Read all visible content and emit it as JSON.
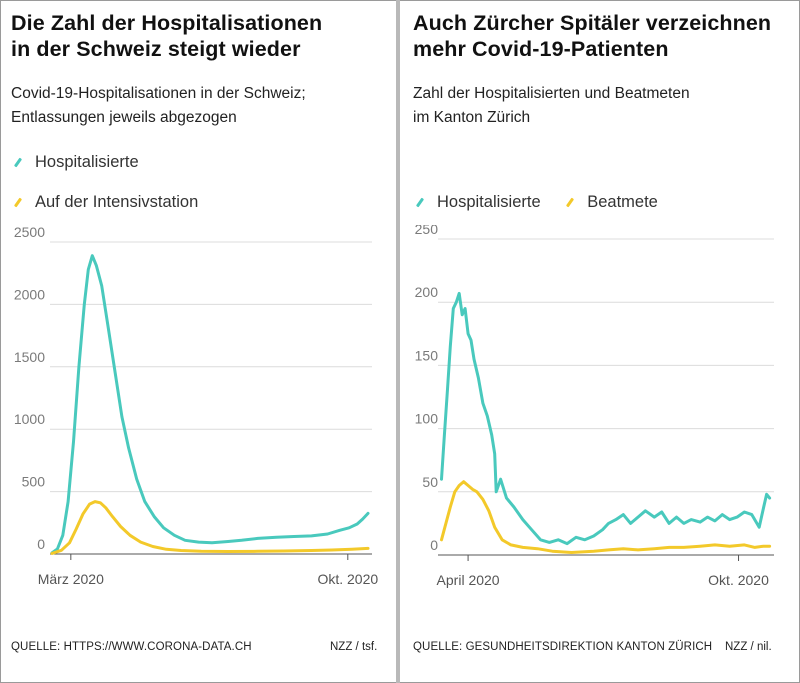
{
  "colors": {
    "teal": "#49c9bd",
    "yellow": "#f3c92a",
    "grid": "#dcdcdc",
    "axis": "#555555",
    "tick_text": "#7a7a7a"
  },
  "left": {
    "title_line1": "Die Zahl der Hospitalisationen",
    "title_line2": "in der Schweiz steigt wieder",
    "subtitle_line1": "Covid-19-Hospitalisationen in der Schweiz;",
    "subtitle_line2": "Entlassungen jeweils abgezogen",
    "legend": [
      "Hospitalisierte",
      "Auf der Intensivstation"
    ],
    "source": "QUELLE: HTTPS://WWW.CORONA-DATA.CH",
    "credit": "NZZ / tsf."
  },
  "right": {
    "title_line1": "Auch Zürcher Spitäler verzeichnen",
    "title_line2": "mehr Covid-19-Patienten",
    "subtitle_line1": "Zahl der Hospitalisierten und Beatmeten",
    "subtitle_line2": "im Kanton Zürich",
    "legend": [
      "Hospitalisierte",
      "Beatmete"
    ],
    "source": "QUELLE: GESUNDHEITSDIREKTION KANTON ZÜRICH",
    "credit": "NZZ / nil."
  },
  "chart_data": [
    {
      "type": "line",
      "title": "Die Zahl der Hospitalisationen in der Schweiz steigt wieder",
      "subtitle": "Covid-19-Hospitalisationen in der Schweiz; Entlassungen jeweils abgezogen",
      "ylim": [
        0,
        2500
      ],
      "yticks": [
        0,
        500,
        1000,
        1500,
        2000,
        2500
      ],
      "ytick_labels": [
        "0",
        "500",
        "1000",
        "1500",
        "2000",
        "2500"
      ],
      "xlim": [
        "2020-03-01",
        "2020-10-25"
      ],
      "xticks": [
        "2020-03-15",
        "2020-10-07"
      ],
      "xtick_labels": [
        "März 2020",
        "Okt. 2020"
      ],
      "grid": true,
      "legend_position": "top-left",
      "series": [
        {
          "name": "Hospitalisierte",
          "color": "#49c9bd",
          "points": [
            [
              "2020-03-01",
              10
            ],
            [
              "2020-03-05",
              40
            ],
            [
              "2020-03-09",
              150
            ],
            [
              "2020-03-13",
              420
            ],
            [
              "2020-03-17",
              900
            ],
            [
              "2020-03-21",
              1500
            ],
            [
              "2020-03-25",
              2000
            ],
            [
              "2020-03-28",
              2280
            ],
            [
              "2020-03-31",
              2390
            ],
            [
              "2020-04-03",
              2310
            ],
            [
              "2020-04-07",
              2150
            ],
            [
              "2020-04-12",
              1800
            ],
            [
              "2020-04-17",
              1450
            ],
            [
              "2020-04-22",
              1100
            ],
            [
              "2020-04-27",
              850
            ],
            [
              "2020-05-03",
              600
            ],
            [
              "2020-05-09",
              420
            ],
            [
              "2020-05-16",
              300
            ],
            [
              "2020-05-23",
              210
            ],
            [
              "2020-05-31",
              150
            ],
            [
              "2020-06-08",
              110
            ],
            [
              "2020-06-18",
              95
            ],
            [
              "2020-06-28",
              90
            ],
            [
              "2020-07-10",
              100
            ],
            [
              "2020-07-20",
              110
            ],
            [
              "2020-08-01",
              125
            ],
            [
              "2020-08-15",
              135
            ],
            [
              "2020-08-28",
              140
            ],
            [
              "2020-09-10",
              145
            ],
            [
              "2020-09-22",
              160
            ],
            [
              "2020-10-01",
              190
            ],
            [
              "2020-10-08",
              210
            ],
            [
              "2020-10-14",
              240
            ],
            [
              "2020-10-18",
              280
            ],
            [
              "2020-10-22",
              325
            ]
          ]
        },
        {
          "name": "Auf der Intensivstation",
          "color": "#f3c92a",
          "points": [
            [
              "2020-03-01",
              5
            ],
            [
              "2020-03-08",
              30
            ],
            [
              "2020-03-14",
              90
            ],
            [
              "2020-03-19",
              200
            ],
            [
              "2020-03-24",
              320
            ],
            [
              "2020-03-29",
              400
            ],
            [
              "2020-04-02",
              420
            ],
            [
              "2020-04-06",
              410
            ],
            [
              "2020-04-10",
              370
            ],
            [
              "2020-04-15",
              300
            ],
            [
              "2020-04-21",
              220
            ],
            [
              "2020-04-28",
              150
            ],
            [
              "2020-05-06",
              95
            ],
            [
              "2020-05-15",
              60
            ],
            [
              "2020-05-25",
              38
            ],
            [
              "2020-06-05",
              28
            ],
            [
              "2020-06-20",
              22
            ],
            [
              "2020-07-10",
              20
            ],
            [
              "2020-08-01",
              22
            ],
            [
              "2020-08-20",
              24
            ],
            [
              "2020-09-10",
              28
            ],
            [
              "2020-09-25",
              32
            ],
            [
              "2020-10-10",
              38
            ],
            [
              "2020-10-22",
              45
            ]
          ]
        }
      ]
    },
    {
      "type": "line",
      "title": "Auch Zürcher Spitäler verzeichnen mehr Covid-19-Patienten",
      "subtitle": "Zahl der Hospitalisierten und Beatmeten im Kanton Zürich",
      "ylim": [
        0,
        250
      ],
      "yticks": [
        0,
        50,
        100,
        150,
        200,
        250
      ],
      "ytick_labels": [
        "0",
        "50",
        "100",
        "150",
        "200",
        "250"
      ],
      "xlim": [
        "2020-03-13",
        "2020-10-25"
      ],
      "xticks": [
        "2020-04-01",
        "2020-10-01"
      ],
      "xtick_labels": [
        "April 2020",
        "Okt. 2020"
      ],
      "grid": true,
      "legend_position": "top-left",
      "series": [
        {
          "name": "Hospitalisierte",
          "color": "#49c9bd",
          "points": [
            [
              "2020-03-14",
              60
            ],
            [
              "2020-03-16",
              95
            ],
            [
              "2020-03-18",
              130
            ],
            [
              "2020-03-20",
              165
            ],
            [
              "2020-03-22",
              195
            ],
            [
              "2020-03-24",
              200
            ],
            [
              "2020-03-26",
              207
            ],
            [
              "2020-03-28",
              190
            ],
            [
              "2020-03-30",
              195
            ],
            [
              "2020-04-01",
              175
            ],
            [
              "2020-04-03",
              170
            ],
            [
              "2020-04-05",
              155
            ],
            [
              "2020-04-08",
              140
            ],
            [
              "2020-04-11",
              120
            ],
            [
              "2020-04-14",
              110
            ],
            [
              "2020-04-17",
              95
            ],
            [
              "2020-04-19",
              80
            ],
            [
              "2020-04-20",
              50
            ],
            [
              "2020-04-23",
              60
            ],
            [
              "2020-04-27",
              45
            ],
            [
              "2020-05-02",
              38
            ],
            [
              "2020-05-08",
              28
            ],
            [
              "2020-05-14",
              20
            ],
            [
              "2020-05-20",
              12
            ],
            [
              "2020-05-26",
              10
            ],
            [
              "2020-06-01",
              12
            ],
            [
              "2020-06-07",
              9
            ],
            [
              "2020-06-13",
              14
            ],
            [
              "2020-06-19",
              12
            ],
            [
              "2020-06-25",
              15
            ],
            [
              "2020-07-01",
              20
            ],
            [
              "2020-07-05",
              25
            ],
            [
              "2020-07-10",
              28
            ],
            [
              "2020-07-15",
              32
            ],
            [
              "2020-07-20",
              25
            ],
            [
              "2020-07-25",
              30
            ],
            [
              "2020-07-30",
              35
            ],
            [
              "2020-08-05",
              30
            ],
            [
              "2020-08-10",
              34
            ],
            [
              "2020-08-15",
              25
            ],
            [
              "2020-08-20",
              30
            ],
            [
              "2020-08-25",
              25
            ],
            [
              "2020-08-30",
              28
            ],
            [
              "2020-09-05",
              26
            ],
            [
              "2020-09-10",
              30
            ],
            [
              "2020-09-15",
              27
            ],
            [
              "2020-09-20",
              32
            ],
            [
              "2020-09-25",
              28
            ],
            [
              "2020-09-30",
              30
            ],
            [
              "2020-10-05",
              34
            ],
            [
              "2020-10-10",
              32
            ],
            [
              "2020-10-15",
              22
            ],
            [
              "2020-10-18",
              38
            ],
            [
              "2020-10-20",
              48
            ],
            [
              "2020-10-22",
              45
            ]
          ]
        },
        {
          "name": "Beatmete",
          "color": "#f3c92a",
          "points": [
            [
              "2020-03-14",
              12
            ],
            [
              "2020-03-17",
              25
            ],
            [
              "2020-03-20",
              38
            ],
            [
              "2020-03-23",
              50
            ],
            [
              "2020-03-26",
              55
            ],
            [
              "2020-03-29",
              58
            ],
            [
              "2020-04-01",
              55
            ],
            [
              "2020-04-04",
              52
            ],
            [
              "2020-04-07",
              50
            ],
            [
              "2020-04-11",
              44
            ],
            [
              "2020-04-15",
              35
            ],
            [
              "2020-04-19",
              22
            ],
            [
              "2020-04-24",
              12
            ],
            [
              "2020-04-30",
              8
            ],
            [
              "2020-05-08",
              6
            ],
            [
              "2020-05-18",
              5
            ],
            [
              "2020-05-28",
              3
            ],
            [
              "2020-06-10",
              2
            ],
            [
              "2020-06-25",
              3
            ],
            [
              "2020-07-05",
              4
            ],
            [
              "2020-07-15",
              5
            ],
            [
              "2020-07-25",
              4
            ],
            [
              "2020-08-05",
              5
            ],
            [
              "2020-08-15",
              6
            ],
            [
              "2020-08-25",
              6
            ],
            [
              "2020-09-05",
              7
            ],
            [
              "2020-09-15",
              8
            ],
            [
              "2020-09-25",
              7
            ],
            [
              "2020-10-05",
              8
            ],
            [
              "2020-10-12",
              6
            ],
            [
              "2020-10-18",
              7
            ],
            [
              "2020-10-22",
              7
            ]
          ]
        }
      ]
    }
  ]
}
